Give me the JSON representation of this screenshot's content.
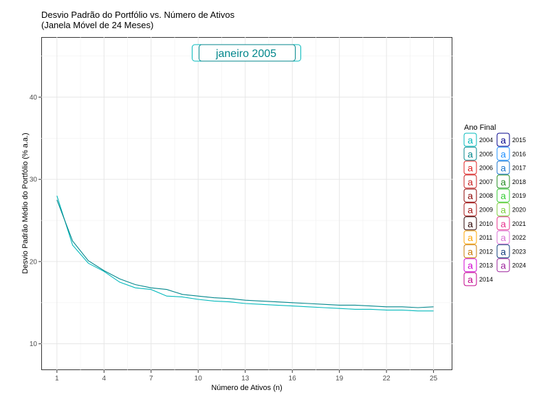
{
  "chart_data": {
    "type": "line",
    "title": "Desvio Padrão do Portfólio vs. Número de Ativos",
    "subtitle": "(Janela Móvel de 24 Meses)",
    "xlabel": "Número de Ativos (n)",
    "ylabel": "Desvio Padrão Médio do Portfólio (% a.a.)",
    "xlim": [
      0,
      26.2
    ],
    "ylim": [
      6.8,
      47.3
    ],
    "xticks": [
      1,
      4,
      7,
      10,
      13,
      16,
      19,
      22,
      25
    ],
    "yticks": [
      10,
      20,
      30,
      40
    ],
    "grid": true,
    "period_label": "janeiro 2005",
    "x": [
      1,
      2,
      3,
      4,
      5,
      6,
      7,
      8,
      9,
      10,
      11,
      12,
      13,
      14,
      15,
      16,
      17,
      18,
      19,
      20,
      21,
      22,
      23,
      24,
      25
    ],
    "series": [
      {
        "name": "2004",
        "color": "#00B8BB",
        "values": [
          28.0,
          22.0,
          19.8,
          18.8,
          17.5,
          16.8,
          16.6,
          15.8,
          15.7,
          15.4,
          15.2,
          15.1,
          14.9,
          14.8,
          14.7,
          14.6,
          14.5,
          14.4,
          14.3,
          14.2,
          14.2,
          14.1,
          14.1,
          14.0,
          14.0
        ]
      },
      {
        "name": "2005",
        "color": "#00868B",
        "values": [
          27.5,
          22.5,
          20.1,
          18.9,
          17.9,
          17.2,
          16.8,
          16.6,
          16.0,
          15.8,
          15.6,
          15.5,
          15.3,
          15.2,
          15.1,
          15.0,
          14.9,
          14.8,
          14.7,
          14.7,
          14.6,
          14.5,
          14.5,
          14.4,
          14.5
        ]
      }
    ],
    "legend": {
      "title": "Ano Final",
      "placement": "right",
      "key_glyph": "a",
      "items": [
        {
          "label": "2004",
          "color": "#00B8BB"
        },
        {
          "label": "2005",
          "color": "#00868B"
        },
        {
          "label": "2006",
          "color": "#E02020"
        },
        {
          "label": "2007",
          "color": "#C81E1E"
        },
        {
          "label": "2008",
          "color": "#8B0000"
        },
        {
          "label": "2009",
          "color": "#A51515"
        },
        {
          "label": "2010",
          "color": "#2A0000"
        },
        {
          "label": "2011",
          "color": "#FFA500"
        },
        {
          "label": "2012",
          "color": "#C87800"
        },
        {
          "label": "2013",
          "color": "#D000D0"
        },
        {
          "label": "2014",
          "color": "#C0008C"
        },
        {
          "label": "2015",
          "color": "#00008B"
        },
        {
          "label": "2016",
          "color": "#1E90FF"
        },
        {
          "label": "2017",
          "color": "#1874CD"
        },
        {
          "label": "2018",
          "color": "#228B22"
        },
        {
          "label": "2019",
          "color": "#32CD32"
        },
        {
          "label": "2020",
          "color": "#7CCD3C"
        },
        {
          "label": "2021",
          "color": "#E8308C"
        },
        {
          "label": "2022",
          "color": "#DA70D6"
        },
        {
          "label": "2023",
          "color": "#0E3A7A"
        },
        {
          "label": "2024",
          "color": "#9B1F9B"
        }
      ]
    }
  }
}
